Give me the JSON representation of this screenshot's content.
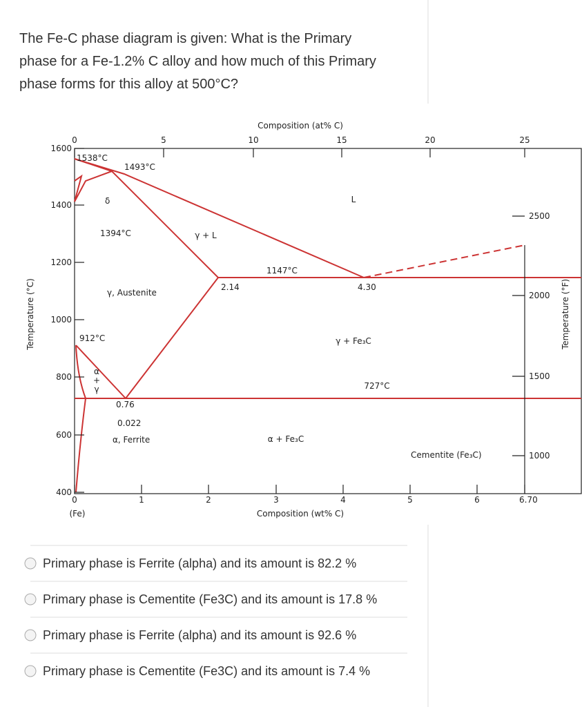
{
  "question_lines": [
    "The Fe-C phase diagram is given: What is the Primary",
    "phase for a Fe-1.2% C alloy and how much of this Primary",
    "phase forms for this alloy at 500°C?"
  ],
  "diagram": {
    "top_axis_title": "Composition (at% C)",
    "top_ticks": [
      "0",
      "5",
      "10",
      "15",
      "20",
      "25"
    ],
    "left_ticks": [
      "1600",
      "1400",
      "1200",
      "1000",
      "800",
      "600",
      "400"
    ],
    "bottom_ticks": [
      "0",
      "1",
      "2",
      "3",
      "4",
      "5",
      "6",
      "6.70"
    ],
    "bottom_axis_title": "Composition (wt% C)",
    "fe_label": "(Fe)",
    "left_axis_title": "Temperature (°C)",
    "right_axis_title": "Temperature (°F)",
    "right_ticks": [
      "2500",
      "2000",
      "1500",
      "1000"
    ],
    "annotations": [
      "1538°C",
      "1493°C",
      "δ",
      "L",
      "1394°C",
      "γ + L",
      "1147°C",
      "2.14",
      "4.30",
      "γ, Austenite",
      "912°C",
      "γ + Fe₃C",
      "α",
      "+",
      "γ",
      "727°C",
      "0.76",
      "0.022",
      "α, Ferrite",
      "α + Fe₃C",
      "Cementite (Fe₃C)"
    ]
  },
  "options": [
    "Primary phase is Ferrite (alpha) and its amount is 82.2 %",
    "Primary phase is Cementite (Fe3C) and its amount is 17.8 %",
    "Primary phase is Ferrite (alpha) and its amount is 92.6 %",
    "Primary phase is Cementite (Fe3C) and its amount is 7.4 %"
  ]
}
